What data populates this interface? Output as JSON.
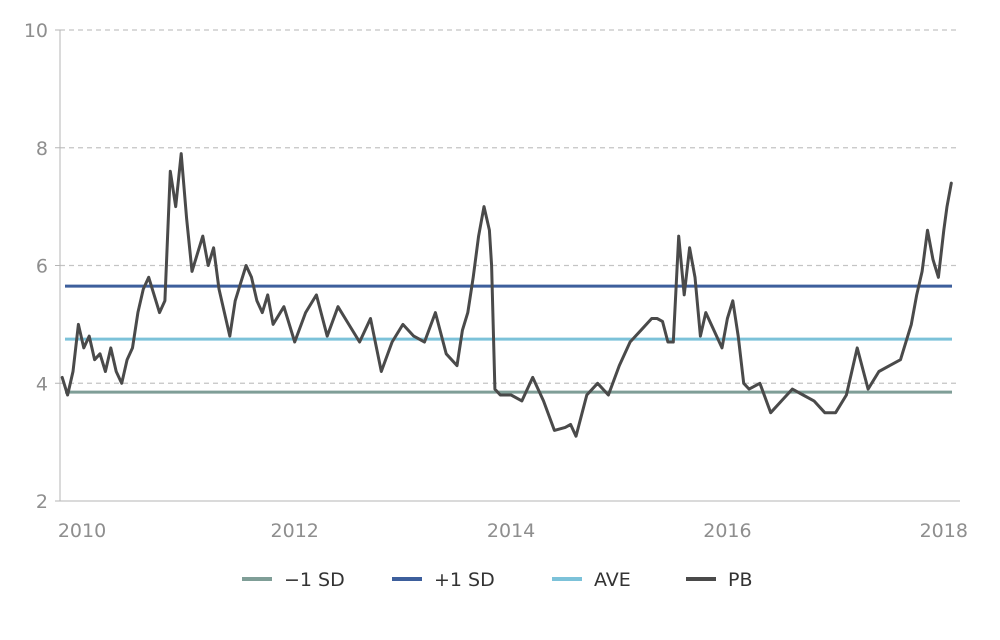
{
  "chart_data": {
    "type": "line",
    "title": "",
    "xlabel": "",
    "ylabel": "",
    "xlim": [
      2009.83,
      2018.15
    ],
    "ylim": [
      2,
      10
    ],
    "grid": true,
    "legend_position": "bottom",
    "x_ticks": [
      2010,
      2012,
      2014,
      2016,
      2018
    ],
    "x_tick_labels": [
      "2010",
      "2012",
      "2014",
      "2016",
      "2018"
    ],
    "y_ticks": [
      2,
      4,
      6,
      8,
      10
    ],
    "y_tick_labels": [
      "2",
      "4",
      "6",
      "8",
      "10"
    ],
    "reference_lines": [
      {
        "name": "−1 SD",
        "value": 3.85,
        "color": "#7f9e97"
      },
      {
        "name": "+1 SD",
        "value": 5.65,
        "color": "#3d5f9c"
      },
      {
        "name": "AVE",
        "value": 4.75,
        "color": "#7cc2d9"
      }
    ],
    "series": [
      {
        "name": "PB",
        "color": "#4a4a4a",
        "x": [
          2009.85,
          2009.9,
          2009.95,
          2010.0,
          2010.05,
          2010.1,
          2010.15,
          2010.2,
          2010.25,
          2010.3,
          2010.35,
          2010.4,
          2010.45,
          2010.5,
          2010.55,
          2010.6,
          2010.65,
          2010.7,
          2010.75,
          2010.8,
          2010.85,
          2010.9,
          2010.95,
          2011.0,
          2011.05,
          2011.1,
          2011.15,
          2011.2,
          2011.25,
          2011.3,
          2011.35,
          2011.4,
          2011.45,
          2011.5,
          2011.55,
          2011.6,
          2011.65,
          2011.7,
          2011.75,
          2011.8,
          2011.9,
          2012.0,
          2012.1,
          2012.2,
          2012.3,
          2012.4,
          2012.5,
          2012.6,
          2012.7,
          2012.8,
          2012.9,
          2013.0,
          2013.1,
          2013.2,
          2013.3,
          2013.4,
          2013.5,
          2013.55,
          2013.6,
          2013.65,
          2013.7,
          2013.75,
          2013.8,
          2013.82,
          2013.85,
          2013.9,
          2014.0,
          2014.1,
          2014.2,
          2014.3,
          2014.4,
          2014.5,
          2014.55,
          2014.6,
          2014.7,
          2014.8,
          2014.9,
          2015.0,
          2015.1,
          2015.2,
          2015.3,
          2015.35,
          2015.4,
          2015.45,
          2015.5,
          2015.55,
          2015.6,
          2015.65,
          2015.7,
          2015.75,
          2015.8,
          2015.85,
          2015.9,
          2015.95,
          2016.0,
          2016.05,
          2016.1,
          2016.15,
          2016.2,
          2016.3,
          2016.4,
          2016.5,
          2016.6,
          2016.7,
          2016.8,
          2016.9,
          2017.0,
          2017.1,
          2017.15,
          2017.2,
          2017.3,
          2017.4,
          2017.5,
          2017.6,
          2017.7,
          2017.75,
          2017.8,
          2017.85,
          2017.9,
          2017.95,
          2018.0,
          2018.03,
          2018.07
        ],
        "values": [
          4.1,
          3.8,
          4.2,
          5.0,
          4.6,
          4.8,
          4.4,
          4.5,
          4.2,
          4.6,
          4.2,
          4.0,
          4.4,
          4.6,
          5.2,
          5.6,
          5.8,
          5.5,
          5.2,
          5.4,
          7.6,
          7.0,
          7.9,
          6.8,
          5.9,
          6.2,
          6.5,
          6.0,
          6.3,
          5.6,
          5.2,
          4.8,
          5.4,
          5.7,
          6.0,
          5.8,
          5.4,
          5.2,
          5.5,
          5.0,
          5.3,
          4.7,
          5.2,
          5.5,
          4.8,
          5.3,
          5.0,
          4.7,
          5.1,
          4.2,
          4.7,
          5.0,
          4.8,
          4.7,
          5.2,
          4.5,
          4.3,
          4.9,
          5.2,
          5.8,
          6.5,
          7.0,
          6.6,
          6.0,
          3.9,
          3.8,
          3.8,
          3.7,
          4.1,
          3.7,
          3.2,
          3.25,
          3.3,
          3.1,
          3.8,
          4.0,
          3.8,
          4.3,
          4.7,
          4.9,
          5.1,
          5.1,
          5.05,
          4.7,
          4.7,
          6.5,
          5.5,
          6.3,
          5.8,
          4.8,
          5.2,
          5.0,
          4.8,
          4.6,
          5.1,
          5.4,
          4.8,
          4.0,
          3.9,
          4.0,
          3.5,
          3.7,
          3.9,
          3.8,
          3.7,
          3.5,
          3.5,
          3.8,
          4.2,
          4.6,
          3.9,
          4.2,
          4.3,
          4.4,
          5.0,
          5.5,
          5.9,
          6.6,
          6.1,
          5.8,
          6.6,
          7.0,
          7.4
        ]
      }
    ]
  }
}
